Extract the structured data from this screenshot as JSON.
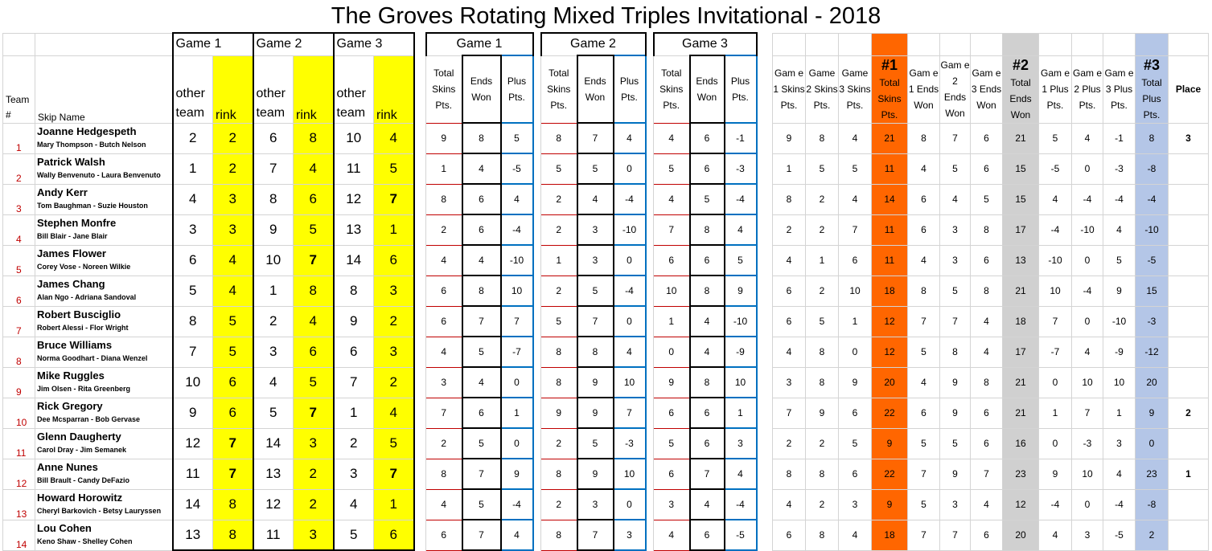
{
  "title": "The Groves Rotating Mixed Triples Invitational - 2018",
  "headers": {
    "team": "Team #",
    "skip": "Skip Name",
    "game1": "Game 1",
    "game2": "Game 2",
    "game3": "Game 3",
    "other_team": "other team",
    "rink": "rink",
    "total_skins": "Total Skins Pts.",
    "ends_won": "Ends Won",
    "plus_pts": "Plus Pts.",
    "g1_skins": "Gam e 1 Skins Pts.",
    "g2_skins": "Game 2 Skins Pts.",
    "g3_skins": "Game 3 Skins Pts.",
    "h1_num": "#1",
    "h1_label": "Total Skins Pts.",
    "g1_ends": "Gam e 1 Ends Won",
    "g2_ends": "Gam e 2 Ends Won",
    "g3_ends": "Gam e 3 Ends Won",
    "h2_num": "#2",
    "h2_label": "Total Ends Won",
    "g1_plus": "Gam e 1 Plus Pts.",
    "g2_plus": "Gam e 2 Plus Pts.",
    "g3_plus": "Gam e 3 Plus Pts.",
    "h3_num": "#3",
    "h3_label": "Total Plus Pts.",
    "place": "Place"
  },
  "rows": [
    {
      "team": "1",
      "skip": "Joanne Hedgespeth",
      "players": "Mary Thompson - Butch Nelson",
      "g1o": "2",
      "g1r": "2",
      "g2o": "6",
      "g2r": "8",
      "g3o": "10",
      "g3r": "4",
      "g1s": "9",
      "g1e": "8",
      "g1p": "5",
      "g2s": "8",
      "g2e": "7",
      "g2p": "4",
      "g3s": "4",
      "g3e": "6",
      "g3p": "-1",
      "s1": "9",
      "s2": "8",
      "s3": "4",
      "st": "21",
      "e1": "8",
      "e2": "7",
      "e3": "6",
      "et": "21",
      "p1": "5",
      "p2": "4",
      "p3": "-1",
      "pt": "8",
      "place": "3"
    },
    {
      "team": "2",
      "skip": "Patrick Walsh",
      "players": "Wally Benvenuto - Laura Benvenuto",
      "g1o": "1",
      "g1r": "2",
      "g2o": "7",
      "g2r": "4",
      "g3o": "11",
      "g3r": "5",
      "g1s": "1",
      "g1e": "4",
      "g1p": "-5",
      "g2s": "5",
      "g2e": "5",
      "g2p": "0",
      "g3s": "5",
      "g3e": "6",
      "g3p": "-3",
      "s1": "1",
      "s2": "5",
      "s3": "5",
      "st": "11",
      "e1": "4",
      "e2": "5",
      "e3": "6",
      "et": "15",
      "p1": "-5",
      "p2": "0",
      "p3": "-3",
      "pt": "-8",
      "place": ""
    },
    {
      "team": "3",
      "skip": "Andy Kerr",
      "players": "Tom Baughman - Suzie Houston",
      "g1o": "4",
      "g1r": "3",
      "g2o": "8",
      "g2r": "6",
      "g3o": "12",
      "g3r": "7",
      "g1s": "8",
      "g1e": "6",
      "g1p": "4",
      "g2s": "2",
      "g2e": "4",
      "g2p": "-4",
      "g3s": "4",
      "g3e": "5",
      "g3p": "-4",
      "s1": "8",
      "s2": "2",
      "s3": "4",
      "st": "14",
      "e1": "6",
      "e2": "4",
      "e3": "5",
      "et": "15",
      "p1": "4",
      "p2": "-4",
      "p3": "-4",
      "pt": "-4",
      "place": ""
    },
    {
      "team": "4",
      "skip": "Stephen Monfre",
      "players": "Bill Blair - Jane Blair",
      "g1o": "3",
      "g1r": "3",
      "g2o": "9",
      "g2r": "5",
      "g3o": "13",
      "g3r": "1",
      "g1s": "2",
      "g1e": "6",
      "g1p": "-4",
      "g2s": "2",
      "g2e": "3",
      "g2p": "-10",
      "g3s": "7",
      "g3e": "8",
      "g3p": "4",
      "s1": "2",
      "s2": "2",
      "s3": "7",
      "st": "11",
      "e1": "6",
      "e2": "3",
      "e3": "8",
      "et": "17",
      "p1": "-4",
      "p2": "-10",
      "p3": "4",
      "pt": "-10",
      "place": ""
    },
    {
      "team": "5",
      "skip": "James Flower",
      "players": "Corey Vose - Noreen Wilkie",
      "g1o": "6",
      "g1r": "4",
      "g2o": "10",
      "g2r": "7",
      "g3o": "14",
      "g3r": "6",
      "g1s": "4",
      "g1e": "4",
      "g1p": "-10",
      "g2s": "1",
      "g2e": "3",
      "g2p": "0",
      "g3s": "6",
      "g3e": "6",
      "g3p": "5",
      "s1": "4",
      "s2": "1",
      "s3": "6",
      "st": "11",
      "e1": "4",
      "e2": "3",
      "e3": "6",
      "et": "13",
      "p1": "-10",
      "p2": "0",
      "p3": "5",
      "pt": "-5",
      "place": ""
    },
    {
      "team": "6",
      "skip": "James Chang",
      "players": "Alan Ngo - Adriana Sandoval",
      "g1o": "5",
      "g1r": "4",
      "g2o": "1",
      "g2r": "8",
      "g3o": "8",
      "g3r": "3",
      "g1s": "6",
      "g1e": "8",
      "g1p": "10",
      "g2s": "2",
      "g2e": "5",
      "g2p": "-4",
      "g3s": "10",
      "g3e": "8",
      "g3p": "9",
      "s1": "6",
      "s2": "2",
      "s3": "10",
      "st": "18",
      "e1": "8",
      "e2": "5",
      "e3": "8",
      "et": "21",
      "p1": "10",
      "p2": "-4",
      "p3": "9",
      "pt": "15",
      "place": ""
    },
    {
      "team": "7",
      "skip": "Robert Busciglio",
      "players": "Robert Alessi - Flor Wright",
      "g1o": "8",
      "g1r": "5",
      "g2o": "2",
      "g2r": "4",
      "g3o": "9",
      "g3r": "2",
      "g1s": "6",
      "g1e": "7",
      "g1p": "7",
      "g2s": "5",
      "g2e": "7",
      "g2p": "0",
      "g3s": "1",
      "g3e": "4",
      "g3p": "-10",
      "s1": "6",
      "s2": "5",
      "s3": "1",
      "st": "12",
      "e1": "7",
      "e2": "7",
      "e3": "4",
      "et": "18",
      "p1": "7",
      "p2": "0",
      "p3": "-10",
      "pt": "-3",
      "place": ""
    },
    {
      "team": "8",
      "skip": "Bruce Williams",
      "players": "Norma Goodhart - Diana Wenzel",
      "g1o": "7",
      "g1r": "5",
      "g2o": "3",
      "g2r": "6",
      "g3o": "6",
      "g3r": "3",
      "g1s": "4",
      "g1e": "5",
      "g1p": "-7",
      "g2s": "8",
      "g2e": "8",
      "g2p": "4",
      "g3s": "0",
      "g3e": "4",
      "g3p": "-9",
      "s1": "4",
      "s2": "8",
      "s3": "0",
      "st": "12",
      "e1": "5",
      "e2": "8",
      "e3": "4",
      "et": "17",
      "p1": "-7",
      "p2": "4",
      "p3": "-9",
      "pt": "-12",
      "place": ""
    },
    {
      "team": "9",
      "skip": "Mike Ruggles",
      "players": "Jim Olsen - Rita Greenberg",
      "g1o": "10",
      "g1r": "6",
      "g2o": "4",
      "g2r": "5",
      "g3o": "7",
      "g3r": "2",
      "g1s": "3",
      "g1e": "4",
      "g1p": "0",
      "g2s": "8",
      "g2e": "9",
      "g2p": "10",
      "g3s": "9",
      "g3e": "8",
      "g3p": "10",
      "s1": "3",
      "s2": "8",
      "s3": "9",
      "st": "20",
      "e1": "4",
      "e2": "9",
      "e3": "8",
      "et": "21",
      "p1": "0",
      "p2": "10",
      "p3": "10",
      "pt": "20",
      "place": ""
    },
    {
      "team": "10",
      "skip": "Rick Gregory",
      "players": "Dee Mcsparran - Bob Gervase",
      "g1o": "9",
      "g1r": "6",
      "g2o": "5",
      "g2r": "7",
      "g3o": "1",
      "g3r": "4",
      "g1s": "7",
      "g1e": "6",
      "g1p": "1",
      "g2s": "9",
      "g2e": "9",
      "g2p": "7",
      "g3s": "6",
      "g3e": "6",
      "g3p": "1",
      "s1": "7",
      "s2": "9",
      "s3": "6",
      "st": "22",
      "e1": "6",
      "e2": "9",
      "e3": "6",
      "et": "21",
      "p1": "1",
      "p2": "7",
      "p3": "1",
      "pt": "9",
      "place": "2"
    },
    {
      "team": "11",
      "skip": "Glenn Daugherty",
      "players": "Carol Dray - Jim Semanek",
      "g1o": "12",
      "g1r": "7",
      "g2o": "14",
      "g2r": "3",
      "g3o": "2",
      "g3r": "5",
      "g1s": "2",
      "g1e": "5",
      "g1p": "0",
      "g2s": "2",
      "g2e": "5",
      "g2p": "-3",
      "g3s": "5",
      "g3e": "6",
      "g3p": "3",
      "s1": "2",
      "s2": "2",
      "s3": "5",
      "st": "9",
      "e1": "5",
      "e2": "5",
      "e3": "6",
      "et": "16",
      "p1": "0",
      "p2": "-3",
      "p3": "3",
      "pt": "0",
      "place": ""
    },
    {
      "team": "12",
      "skip": "Anne Nunes",
      "players": "Bill Brault - Candy DeFazio",
      "g1o": "11",
      "g1r": "7",
      "g2o": "13",
      "g2r": "2",
      "g3o": "3",
      "g3r": "7",
      "g1s": "8",
      "g1e": "7",
      "g1p": "9",
      "g2s": "8",
      "g2e": "9",
      "g2p": "10",
      "g3s": "6",
      "g3e": "7",
      "g3p": "4",
      "s1": "8",
      "s2": "8",
      "s3": "6",
      "st": "22",
      "e1": "7",
      "e2": "9",
      "e3": "7",
      "et": "23",
      "p1": "9",
      "p2": "10",
      "p3": "4",
      "pt": "23",
      "place": "1"
    },
    {
      "team": "13",
      "skip": "Howard Horowitz",
      "players": "Cheryl Barkovich - Betsy Lauryssen",
      "g1o": "14",
      "g1r": "8",
      "g2o": "12",
      "g2r": "2",
      "g3o": "4",
      "g3r": "1",
      "g1s": "4",
      "g1e": "5",
      "g1p": "-4",
      "g2s": "2",
      "g2e": "3",
      "g2p": "0",
      "g3s": "3",
      "g3e": "4",
      "g3p": "-4",
      "s1": "4",
      "s2": "2",
      "s3": "3",
      "st": "9",
      "e1": "5",
      "e2": "3",
      "e3": "4",
      "et": "12",
      "p1": "-4",
      "p2": "0",
      "p3": "-4",
      "pt": "-8",
      "place": ""
    },
    {
      "team": "14",
      "skip": "Lou Cohen",
      "players": "Keno Shaw - Shelley Cohen",
      "g1o": "13",
      "g1r": "8",
      "g2o": "11",
      "g2r": "3",
      "g3o": "5",
      "g3r": "6",
      "g1s": "6",
      "g1e": "7",
      "g1p": "4",
      "g2s": "8",
      "g2e": "7",
      "g2p": "3",
      "g3s": "4",
      "g3e": "6",
      "g3p": "-5",
      "s1": "6",
      "s2": "8",
      "s3": "4",
      "st": "18",
      "e1": "7",
      "e2": "7",
      "e3": "6",
      "et": "20",
      "p1": "4",
      "p2": "3",
      "p3": "-5",
      "pt": "2",
      "place": ""
    }
  ]
}
